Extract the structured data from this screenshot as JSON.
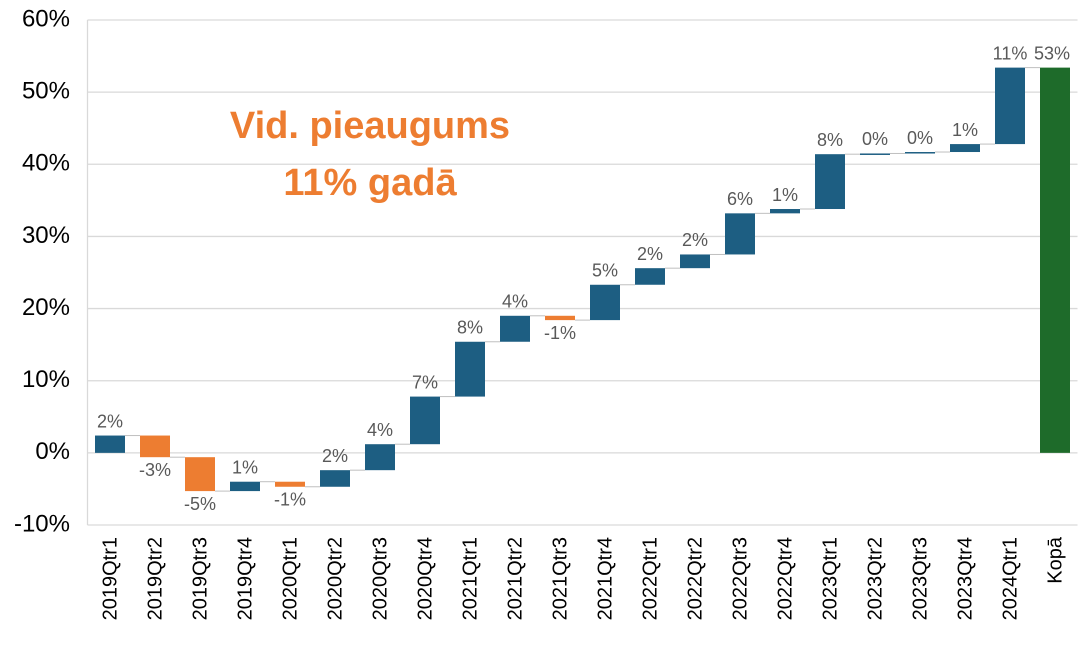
{
  "chart_data": {
    "type": "waterfall",
    "categories": [
      "2019Qtr1",
      "2019Qtr2",
      "2019Qtr3",
      "2019Qtr4",
      "2020Qtr1",
      "2020Qtr2",
      "2020Qtr3",
      "2020Qtr4",
      "2021Qtr1",
      "2021Qtr2",
      "2021Qtr3",
      "2021Qtr4",
      "2022Qtr1",
      "2022Qtr2",
      "2022Qtr3",
      "2022Qtr4",
      "2023Qtr1",
      "2023Qtr2",
      "2023Qtr3",
      "2023Qtr4",
      "2024Qtr1"
    ],
    "values": [
      2.4,
      -3.0,
      -4.7,
      1.3,
      -0.7,
      2.3,
      3.6,
      6.6,
      7.6,
      3.6,
      -0.6,
      4.9,
      2.3,
      1.9,
      5.7,
      0.6,
      7.6,
      0.1,
      0.2,
      1.1,
      10.6
    ],
    "value_labels": [
      "2%",
      "-3%",
      "-5%",
      "1%",
      "-1%",
      "2%",
      "4%",
      "7%",
      "8%",
      "4%",
      "-1%",
      "5%",
      "2%",
      "2%",
      "6%",
      "1%",
      "8%",
      "0%",
      "0%",
      "1%",
      "11%"
    ],
    "total_category": "Kopā",
    "total_value": 53.4,
    "total_label": "53%",
    "increase_color": "#1d5e82",
    "decrease_color": "#ed7d31",
    "total_color": "#1e6b2a",
    "annotation": [
      "Vid. pieaugums",
      "11% gadā"
    ],
    "annotation_color": "#ed7d31",
    "ylim": [
      -10,
      60
    ],
    "yticks": [
      {
        "value": -10,
        "label": "-10%"
      },
      {
        "value": 0,
        "label": "0%"
      },
      {
        "value": 10,
        "label": "10%"
      },
      {
        "value": 20,
        "label": "20%"
      },
      {
        "value": 30,
        "label": "30%"
      },
      {
        "value": 40,
        "label": "40%"
      },
      {
        "value": 50,
        "label": "50%"
      },
      {
        "value": 60,
        "label": "60%"
      }
    ],
    "grid": true
  }
}
